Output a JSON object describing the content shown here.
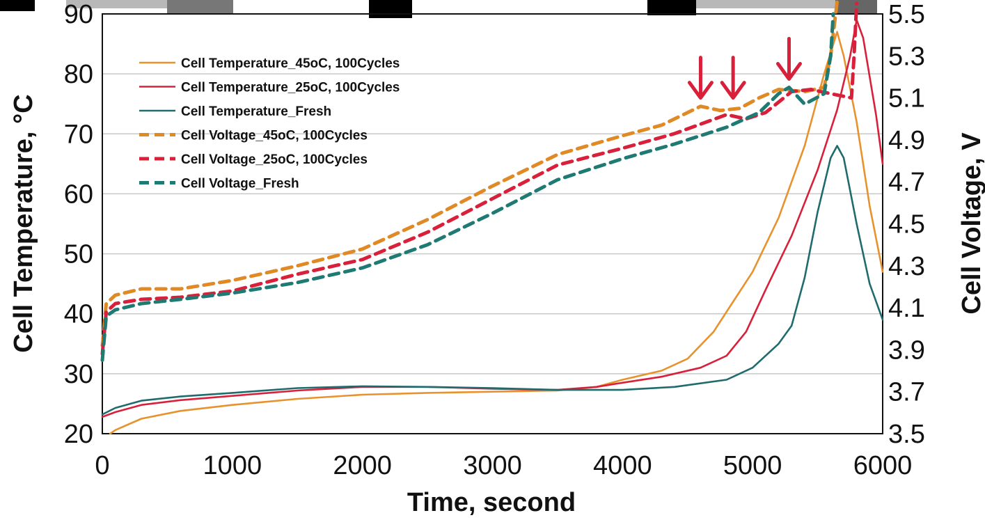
{
  "chart_data": {
    "type": "line",
    "xlabel": "Time, second",
    "ylabel_left": "Cell Temperature, °C",
    "ylabel_right": "Cell Voltage, V",
    "xlim": [
      0,
      6000
    ],
    "ylim_left": [
      20,
      90
    ],
    "ylim_right": [
      3.5,
      5.5
    ],
    "x_ticks": [
      "0",
      "1000",
      "2000",
      "3000",
      "4000",
      "5000",
      "6000"
    ],
    "y_left_ticks": [
      "20",
      "30",
      "40",
      "50",
      "60",
      "70",
      "80",
      "90"
    ],
    "y_right_ticks": [
      "3.5",
      "3.7",
      "3.9",
      "4.1",
      "4.3",
      "4.5",
      "4.7",
      "4.9",
      "5.1",
      "5.3",
      "5.5"
    ],
    "grid": true,
    "legend_position": "top-left",
    "series": [
      {
        "name": "Cell Temperature_45oC, 100Cycles",
        "axis": "left",
        "style": "solid",
        "color": "#e8922e",
        "points": [
          [
            60,
            20
          ],
          [
            100,
            20.6
          ],
          [
            300,
            22.5
          ],
          [
            600,
            23.8
          ],
          [
            1000,
            24.8
          ],
          [
            1500,
            25.8
          ],
          [
            2000,
            26.5
          ],
          [
            2500,
            26.8
          ],
          [
            3000,
            27
          ],
          [
            3500,
            27.2
          ],
          [
            3800,
            27.8
          ],
          [
            4000,
            29
          ],
          [
            4300,
            30.5
          ],
          [
            4500,
            32.5
          ],
          [
            4700,
            37
          ],
          [
            4850,
            42
          ],
          [
            5000,
            47
          ],
          [
            5200,
            56
          ],
          [
            5400,
            68
          ],
          [
            5550,
            80
          ],
          [
            5650,
            87
          ],
          [
            5700,
            83
          ],
          [
            5800,
            72
          ],
          [
            5900,
            58
          ],
          [
            6000,
            47
          ]
        ]
      },
      {
        "name": "Cell Temperature_25oC, 100Cycles",
        "axis": "left",
        "style": "solid",
        "color": "#d8203a",
        "points": [
          [
            0,
            22.8
          ],
          [
            100,
            23.6
          ],
          [
            300,
            24.8
          ],
          [
            600,
            25.6
          ],
          [
            1000,
            26.3
          ],
          [
            1500,
            27.2
          ],
          [
            2000,
            27.8
          ],
          [
            2500,
            27.8
          ],
          [
            3000,
            27.5
          ],
          [
            3500,
            27.3
          ],
          [
            3800,
            27.8
          ],
          [
            4000,
            28.5
          ],
          [
            4300,
            29.5
          ],
          [
            4600,
            31
          ],
          [
            4800,
            33
          ],
          [
            4950,
            37
          ],
          [
            5100,
            44
          ],
          [
            5300,
            53
          ],
          [
            5500,
            64
          ],
          [
            5650,
            74
          ],
          [
            5750,
            83
          ],
          [
            5800,
            89
          ],
          [
            5850,
            86
          ],
          [
            5950,
            73
          ],
          [
            6000,
            65
          ]
        ]
      },
      {
        "name": "Cell Temperature_Fresh",
        "axis": "left",
        "style": "solid",
        "color": "#1f6b6e",
        "points": [
          [
            0,
            23.2
          ],
          [
            100,
            24.3
          ],
          [
            300,
            25.5
          ],
          [
            600,
            26.2
          ],
          [
            1000,
            26.8
          ],
          [
            1500,
            27.6
          ],
          [
            2000,
            27.9
          ],
          [
            2500,
            27.8
          ],
          [
            3000,
            27.6
          ],
          [
            3500,
            27.3
          ],
          [
            4000,
            27.3
          ],
          [
            4400,
            27.8
          ],
          [
            4800,
            29
          ],
          [
            5000,
            31
          ],
          [
            5200,
            35
          ],
          [
            5300,
            38
          ],
          [
            5400,
            46
          ],
          [
            5500,
            57
          ],
          [
            5600,
            66
          ],
          [
            5650,
            68
          ],
          [
            5700,
            66
          ],
          [
            5800,
            55
          ],
          [
            5900,
            45
          ],
          [
            6000,
            39
          ]
        ]
      },
      {
        "name": "Cell Voltage_45oC, 100Cycles",
        "axis": "right",
        "style": "dashed",
        "color": "#e08a25",
        "points": [
          [
            0,
            3.92
          ],
          [
            30,
            4.12
          ],
          [
            100,
            4.16
          ],
          [
            300,
            4.19
          ],
          [
            600,
            4.19
          ],
          [
            1000,
            4.23
          ],
          [
            1500,
            4.3
          ],
          [
            2000,
            4.38
          ],
          [
            2500,
            4.52
          ],
          [
            3000,
            4.68
          ],
          [
            3500,
            4.83
          ],
          [
            4000,
            4.92
          ],
          [
            4300,
            4.97
          ],
          [
            4600,
            5.06
          ],
          [
            4750,
            5.04
          ],
          [
            4900,
            5.05
          ],
          [
            5050,
            5.1
          ],
          [
            5200,
            5.14
          ],
          [
            5400,
            5.13
          ],
          [
            5550,
            5.15
          ],
          [
            5600,
            5.3
          ],
          [
            5650,
            5.56
          ]
        ]
      },
      {
        "name": "Cell Voltage_25oC, 100Cycles",
        "axis": "right",
        "style": "dashed",
        "color": "#d8203a",
        "points": [
          [
            0,
            3.88
          ],
          [
            30,
            4.08
          ],
          [
            100,
            4.12
          ],
          [
            300,
            4.14
          ],
          [
            600,
            4.15
          ],
          [
            1000,
            4.18
          ],
          [
            1500,
            4.26
          ],
          [
            2000,
            4.33
          ],
          [
            2500,
            4.46
          ],
          [
            3000,
            4.62
          ],
          [
            3500,
            4.78
          ],
          [
            4000,
            4.86
          ],
          [
            4400,
            4.93
          ],
          [
            4800,
            5.02
          ],
          [
            4950,
            5.0
          ],
          [
            5100,
            5.03
          ],
          [
            5300,
            5.13
          ],
          [
            5450,
            5.14
          ],
          [
            5600,
            5.12
          ],
          [
            5760,
            5.1
          ],
          [
            5780,
            5.3
          ],
          [
            5800,
            5.55
          ]
        ]
      },
      {
        "name": "Cell Voltage_Fresh",
        "axis": "right",
        "style": "dashed",
        "color": "#1f7a74",
        "points": [
          [
            0,
            3.85
          ],
          [
            30,
            4.06
          ],
          [
            100,
            4.09
          ],
          [
            300,
            4.12
          ],
          [
            600,
            4.14
          ],
          [
            1000,
            4.17
          ],
          [
            1500,
            4.22
          ],
          [
            2000,
            4.29
          ],
          [
            2500,
            4.4
          ],
          [
            3000,
            4.55
          ],
          [
            3500,
            4.71
          ],
          [
            4000,
            4.81
          ],
          [
            4400,
            4.88
          ],
          [
            4800,
            4.96
          ],
          [
            5050,
            5.03
          ],
          [
            5200,
            5.12
          ],
          [
            5280,
            5.15
          ],
          [
            5400,
            5.07
          ],
          [
            5550,
            5.12
          ],
          [
            5600,
            5.3
          ],
          [
            5620,
            5.5
          ]
        ]
      }
    ],
    "annotations": [
      {
        "type": "arrow",
        "x": 4600,
        "voltage": 5.08,
        "color": "#d8203a"
      },
      {
        "type": "arrow",
        "x": 4850,
        "voltage": 5.08,
        "color": "#d8203a"
      },
      {
        "type": "arrow",
        "x": 5280,
        "voltage": 5.17,
        "color": "#d8203a"
      }
    ]
  }
}
